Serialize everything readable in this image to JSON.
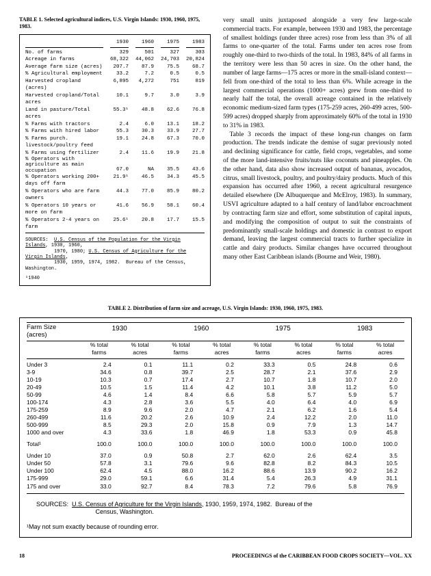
{
  "table1": {
    "title": "TABLE 1. Selected agricultural indices, U.S. Virgin Islands: 1930, 1960, 1975, 1983.",
    "years": [
      "1930",
      "1960",
      "1975",
      "1983"
    ],
    "rows": [
      {
        "label": "No. of farms",
        "v": [
          "329",
          "501",
          "327",
          "303"
        ]
      },
      {
        "label": "Acreage in farms",
        "v": [
          "68,322",
          "44,062",
          "24,703",
          "20,824"
        ]
      },
      {
        "label": "Average farm size (acres)",
        "v": [
          "207.7",
          "87.9",
          "75.5",
          "68.7"
        ]
      },
      {
        "label": "% Agricultural employment",
        "v": [
          "33.2",
          "7.2",
          "0.5",
          "0.5"
        ]
      },
      {
        "label": "Harvested cropland (acres)",
        "v": [
          "6,895",
          "4,272",
          "751",
          "819"
        ]
      },
      {
        "label": "Harvested cropland/Total acres",
        "v": [
          "10.1",
          "9.7",
          "3.0",
          "3.9"
        ]
      },
      {
        "label": "Land in pasture/Total acres",
        "v": [
          "55.3¹",
          "48.8",
          "62.6",
          "76.8"
        ]
      },
      {
        "label": "% Farms with tractors",
        "v": [
          "2.4",
          "6.0",
          "13.1",
          "18.2"
        ]
      },
      {
        "label": "% Farms with hired labor",
        "v": [
          "55.3",
          "30.3",
          "33.9",
          "27.7"
        ]
      },
      {
        "label": "% Farms purch. livestock/poultry feed",
        "v": [
          "19.1",
          "24.8",
          "67.3",
          "70.0"
        ]
      },
      {
        "label": "% Farms using fertilizer",
        "v": [
          "2.4",
          "11.6",
          "19.9",
          "21.8"
        ]
      },
      {
        "label": "% Operators with agriculture as main occupation",
        "v": [
          "67.0",
          "NA",
          "35.5",
          "43.6"
        ],
        "twoRow": true
      },
      {
        "label": "% Operators working 200+ days off farm",
        "v": [
          "21.9¹",
          "46.5",
          "34.3",
          "45.5"
        ]
      },
      {
        "label": "% Operators who are farm owners",
        "v": [
          "44.3",
          "77.0",
          "85.9",
          "80.2"
        ]
      },
      {
        "label": "% Operators 10 years or more on farm",
        "v": [
          "41.6",
          "56.9",
          "58.1",
          "60.4"
        ]
      },
      {
        "label": "% Operators 2-4 years on farm",
        "v": [
          "25.6¹",
          "20.8",
          "17.7",
          "15.5"
        ]
      }
    ],
    "sources": "SOURCES:  U.S. Census of the Population for the Virgin Islands, 1930, 1960, 1970, 1980; U.S. Census of Agriculture for the Virgin Islands, 1930, 1959, 1974, 1982.  Bureau of the Census, Washington.",
    "footnote": "¹1940"
  },
  "rightText": {
    "p1": "very small units juxtaposed alongside a very few large-scale commercial tracts. For example, between 1930 and 1983, the percentage of smallest holdings (under three acres) rose from less than 3% of all farms to one-quarter of the total. Farms under ten acres rose from roughly one-third to two-thirds of the total. In 1983, 84% of all farms in the territory were less than 50 acres in size. On the other hand, the number of large farms—175 acres or more in the small-island context—fell from one-third of the total to less than 6%. While acreage in the largest commercial operations (1000+ acres) grew from one-third to nearly half the total, the overall acreage contained in the relatively economic medium-sized farm types (175-259 acres, 260-499 acres, 500-599 acres) dropped sharply from approximately 60% of the total in 1930 to 31% in 1983.",
    "p2": "Table 3 records the impact of these long-run changes on farm production. The trends indicate the demise of sugar previously noted and declining significance for cattle, field crops, vegetables, and some of the more land-intensive fruits/nuts like coconuts and pineapples. On the other hand, data also show increased output of bananas, avocados, citrus, small livestock, poultry, and poultry/dairy products. Much of this expansion has occurred after 1960, a recent agricultural resurgence detailed elsewhere (De Albuquerque and McElroy, 1983). In summary, USVI agriculture adapted to a half century of land/labor encroachment by contracting farm size and effort, some substitution of capital inputs, and modifying the composition of output to suit the constraints of predominantly small-scale holdings and domestic in contrast to export demand, leaving the largest commercial tracts to further specialize in cattle and dairy products. Similar changes have occurred throughout many other East Caribbean islands (Bourne and Weir, 1980)."
  },
  "table2": {
    "title": "TABLE 2.    Distribution of farm size and acreage, U.S. Virgin Islands: 1930, 1960, 1975, 1983.",
    "farmSizeLabel1": "Farm Size",
    "farmSizeLabel2": "(acres)",
    "years": [
      "1930",
      "1960",
      "1975",
      "1983"
    ],
    "subheads": [
      "% total farms",
      "% total acres",
      "% total farms",
      "% total acres",
      "% total farms",
      "% total acres",
      "% total farms",
      "% total acres"
    ],
    "section1": [
      {
        "label": "Under 3",
        "v": [
          "2.4",
          "0.1",
          "11.1",
          "0.2",
          "33.3",
          "0.5",
          "24.8",
          "0.6"
        ]
      },
      {
        "label": "3-9",
        "v": [
          "34.6",
          "0.8",
          "39.7",
          "2.5",
          "28.7",
          "2.1",
          "37.6",
          "2.9"
        ]
      },
      {
        "label": "10-19",
        "v": [
          "10.3",
          "0.7",
          "17.4",
          "2.7",
          "10.7",
          "1.8",
          "10.7",
          "2.0"
        ]
      },
      {
        "label": "20-49",
        "v": [
          "10.5",
          "1.5",
          "11.4",
          "4.2",
          "10.1",
          "3.8",
          "11.2",
          "5.0"
        ]
      },
      {
        "label": "50-99",
        "v": [
          "4.6",
          "1.4",
          "8.4",
          "6.6",
          "5.8",
          "5.7",
          "5.9",
          "5.7"
        ]
      },
      {
        "label": "100-174",
        "v": [
          "4.3",
          "2.8",
          "3.6",
          "5.5",
          "4.0",
          "6.4",
          "4.0",
          "6.9"
        ]
      },
      {
        "label": "175-259",
        "v": [
          "8.9",
          "9.6",
          "2.0",
          "4.7",
          "2.1",
          "6.2",
          "1.6",
          "5.4"
        ]
      },
      {
        "label": "260-499",
        "v": [
          "11.6",
          "20.2",
          "2.6",
          "10.9",
          "2.4",
          "12.2",
          "2.0",
          "11.0"
        ]
      },
      {
        "label": "500-999",
        "v": [
          "8.5",
          "29.3",
          "2.0",
          "15.8",
          "0.9",
          "7.9",
          "1.3",
          "14.7"
        ]
      },
      {
        "label": "1000 and over",
        "v": [
          "4.3",
          "33.6",
          "1.8",
          "46.9",
          "1.8",
          "53.3",
          "0.9",
          "45.8"
        ]
      }
    ],
    "totalLabel": "Total¹",
    "totalRow": [
      "100.0",
      "100.0",
      "100.0",
      "100.0",
      "100.0",
      "100.0",
      "100.0",
      "100.0"
    ],
    "section2": [
      {
        "label": "Under 10",
        "v": [
          "37.0",
          "0.9",
          "50.8",
          "2.7",
          "62.0",
          "2.6",
          "62.4",
          "3.5"
        ]
      },
      {
        "label": "Under 50",
        "v": [
          "57.8",
          "3.1",
          "79.6",
          "9.6",
          "82.8",
          "8.2",
          "84.3",
          "10.5"
        ]
      },
      {
        "label": "Under 100",
        "v": [
          "62.4",
          "4.5",
          "88.0",
          "16.2",
          "88.6",
          "13.9",
          "90.2",
          "16.2"
        ]
      },
      {
        "label": "175-999",
        "v": [
          "29.0",
          "59.1",
          "6.6",
          "31.4",
          "5.4",
          "26.3",
          "4.9",
          "31.1"
        ]
      },
      {
        "label": "175 and over",
        "v": [
          "33.0",
          "92.7",
          "8.4",
          "78.3",
          "7.2",
          "79.6",
          "5.8",
          "76.9"
        ]
      }
    ],
    "sourcesLabel": "SOURCES:",
    "sourcesText": "U.S. Census of Agriculture for the Virgin Islands, 1930, 1959, 1974, 1982.  Bureau of the Census, Washington.",
    "footnote": "¹May not sum exactly because of rounding error."
  },
  "footer": {
    "pageNum": "18",
    "pubLine": "PROCEEDINGS of the CARIBBEAN FOOD CROPS SOCIETY—VOL. XX"
  }
}
